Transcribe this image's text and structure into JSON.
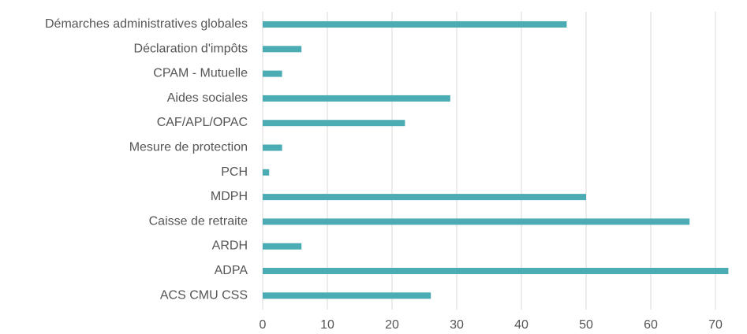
{
  "chart_data": {
    "type": "bar",
    "orientation": "horizontal",
    "categories": [
      "Démarches administratives globales",
      "Déclaration d'impôts",
      "CPAM - Mutuelle",
      "Aides sociales",
      "CAF/APL/OPAC",
      "Mesure de protection",
      "PCH",
      "MDPH",
      "Caisse de retraite",
      "ARDH",
      "ADPA",
      "ACS CMU CSS"
    ],
    "values": [
      47,
      6,
      3,
      29,
      22,
      3,
      1,
      50,
      66,
      6,
      72,
      26
    ],
    "xlim": [
      0,
      72
    ],
    "xticks": [
      "0",
      "10",
      "20",
      "30",
      "40",
      "50",
      "60",
      "70"
    ],
    "grid": true,
    "bar_color": "#4bacb3",
    "title": "",
    "xlabel": "",
    "ylabel": ""
  }
}
